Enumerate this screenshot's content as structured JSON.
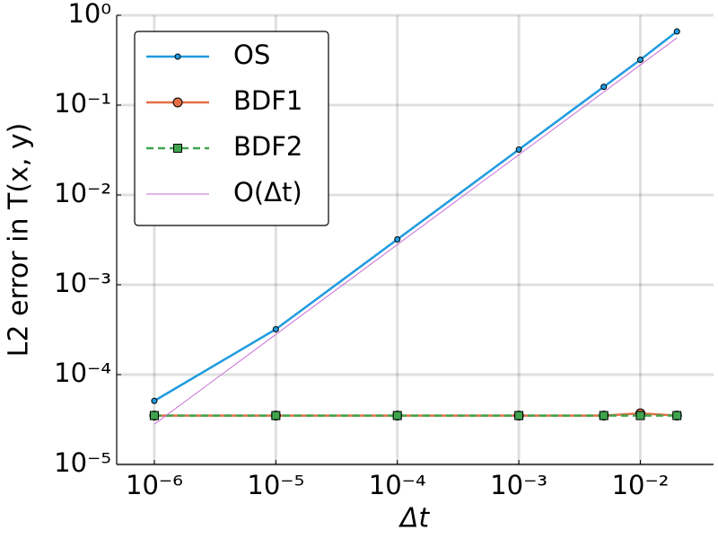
{
  "chart_data": {
    "type": "line",
    "xlabel": "Δt",
    "ylabel": "L2 error in T(x, y)",
    "xscale": "log",
    "yscale": "log",
    "grid": true,
    "legend": "upper left",
    "xlim": [
      4.9e-07,
      0.04
    ],
    "ylim": [
      1e-05,
      1
    ],
    "xticks": [
      {
        "value": 1e-06,
        "label": "10⁻⁶"
      },
      {
        "value": 1e-05,
        "label": "10⁻⁵"
      },
      {
        "value": 0.0001,
        "label": "10⁻⁴"
      },
      {
        "value": 0.001,
        "label": "10⁻³"
      },
      {
        "value": 0.01,
        "label": "10⁻²"
      }
    ],
    "yticks": [
      {
        "value": 1e-05,
        "label": "10⁻⁵"
      },
      {
        "value": 0.0001,
        "label": "10⁻⁴"
      },
      {
        "value": 0.001,
        "label": "10⁻³"
      },
      {
        "value": 0.01,
        "label": "10⁻²"
      },
      {
        "value": 0.1,
        "label": "10⁻¹"
      },
      {
        "value": 1,
        "label": "10⁰"
      }
    ],
    "series": [
      {
        "name": "OS",
        "color": "#1f9be0",
        "marker": "circle",
        "marker_size": 3,
        "line_width": 2.5,
        "dash": "none",
        "x": [
          1e-06,
          1e-05,
          0.0001,
          0.001,
          0.005,
          0.01,
          0.02
        ],
        "values": [
          5.1e-05,
          0.00032,
          0.0032,
          0.032,
          0.16,
          0.32,
          0.66
        ]
      },
      {
        "name": "BDF1",
        "color": "#e26f46",
        "marker": "circle",
        "marker_size": 5,
        "line_width": 2.5,
        "dash": "none",
        "x": [
          1e-06,
          1e-05,
          0.0001,
          0.001,
          0.005,
          0.01,
          0.02
        ],
        "values": [
          3.5e-05,
          3.5e-05,
          3.5e-05,
          3.5e-05,
          3.5e-05,
          3.7e-05,
          3.5e-05
        ]
      },
      {
        "name": "BDF2",
        "color": "#3ea44e",
        "marker": "square",
        "marker_size": 4.5,
        "line_width": 2.5,
        "dash": "8 5",
        "x": [
          1e-06,
          1e-05,
          0.0001,
          0.001,
          0.005,
          0.01,
          0.02
        ],
        "values": [
          3.5e-05,
          3.5e-05,
          3.5e-05,
          3.5e-05,
          3.5e-05,
          3.5e-05,
          3.5e-05
        ]
      },
      {
        "name": "O(Δt)",
        "color": "#c86bd6",
        "marker": "none",
        "marker_size": 0,
        "line_width": 1,
        "dash": "none",
        "x": [
          1e-06,
          0.02
        ],
        "values": [
          2.8e-05,
          0.56
        ]
      }
    ]
  }
}
